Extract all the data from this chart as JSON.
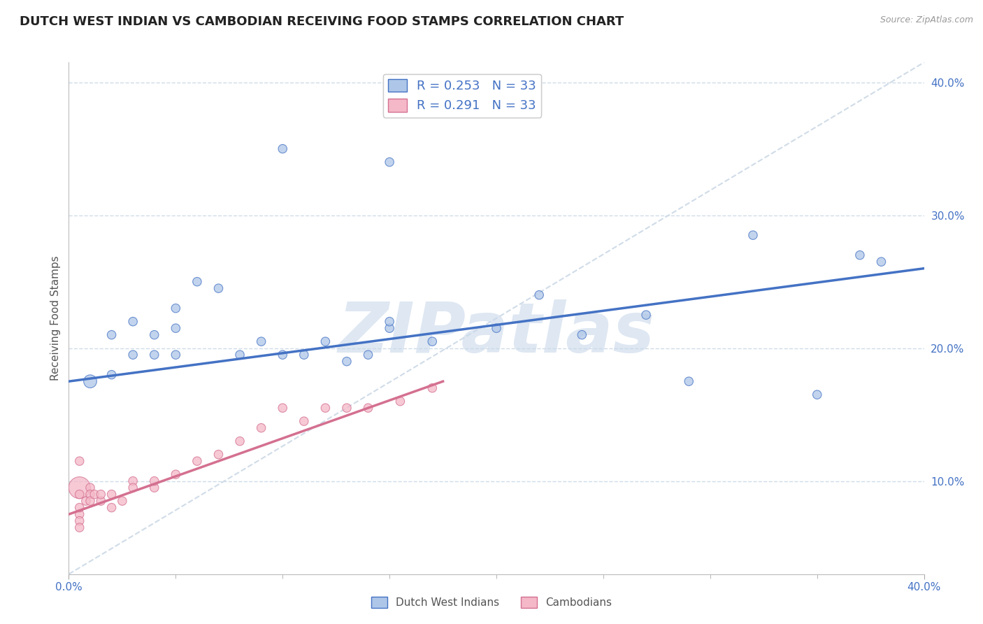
{
  "title": "DUTCH WEST INDIAN VS CAMBODIAN RECEIVING FOOD STAMPS CORRELATION CHART",
  "source": "Source: ZipAtlas.com",
  "ylabel": "Receiving Food Stamps",
  "xlim": [
    0.0,
    0.4
  ],
  "ylim": [
    0.03,
    0.415
  ],
  "y_ticks_right": [
    0.1,
    0.2,
    0.3,
    0.4
  ],
  "y_tick_labels_right": [
    "10.0%",
    "20.0%",
    "30.0%",
    "40.0%"
  ],
  "blue_color": "#aec6e8",
  "blue_color_dark": "#4472c4",
  "pink_color": "#f4b8c8",
  "pink_color_dark": "#d47090",
  "watermark": "ZIPatlas",
  "watermark_color": "#c8d8ea",
  "blue_scatter_x": [
    0.01,
    0.02,
    0.02,
    0.03,
    0.03,
    0.04,
    0.04,
    0.05,
    0.05,
    0.05,
    0.06,
    0.07,
    0.08,
    0.09,
    0.1,
    0.11,
    0.12,
    0.13,
    0.14,
    0.15,
    0.15,
    0.17,
    0.2,
    0.22,
    0.24,
    0.27,
    0.29,
    0.32,
    0.35,
    0.37,
    0.38,
    0.1,
    0.15
  ],
  "blue_scatter_y": [
    0.175,
    0.18,
    0.21,
    0.195,
    0.22,
    0.195,
    0.21,
    0.195,
    0.215,
    0.23,
    0.25,
    0.245,
    0.195,
    0.205,
    0.195,
    0.195,
    0.205,
    0.19,
    0.195,
    0.215,
    0.22,
    0.205,
    0.215,
    0.24,
    0.21,
    0.225,
    0.175,
    0.285,
    0.165,
    0.27,
    0.265,
    0.35,
    0.34
  ],
  "blue_scatter_sizes": [
    180,
    80,
    80,
    80,
    80,
    80,
    80,
    80,
    80,
    80,
    80,
    80,
    80,
    80,
    80,
    80,
    80,
    80,
    80,
    80,
    80,
    80,
    80,
    80,
    80,
    80,
    80,
    80,
    80,
    80,
    80,
    80,
    80
  ],
  "pink_scatter_x": [
    0.005,
    0.005,
    0.008,
    0.01,
    0.01,
    0.01,
    0.012,
    0.015,
    0.015,
    0.02,
    0.02,
    0.025,
    0.03,
    0.03,
    0.04,
    0.04,
    0.05,
    0.06,
    0.07,
    0.08,
    0.09,
    0.1,
    0.11,
    0.12,
    0.13,
    0.14,
    0.155,
    0.17,
    0.005,
    0.005,
    0.005,
    0.005,
    0.005
  ],
  "pink_scatter_y": [
    0.095,
    0.09,
    0.085,
    0.095,
    0.09,
    0.085,
    0.09,
    0.085,
    0.09,
    0.08,
    0.09,
    0.085,
    0.1,
    0.095,
    0.095,
    0.1,
    0.105,
    0.115,
    0.12,
    0.13,
    0.14,
    0.155,
    0.145,
    0.155,
    0.155,
    0.155,
    0.16,
    0.17,
    0.075,
    0.07,
    0.065,
    0.08,
    0.115
  ],
  "pink_scatter_sizes": [
    500,
    80,
    80,
    80,
    80,
    80,
    80,
    80,
    80,
    80,
    80,
    80,
    80,
    80,
    80,
    80,
    80,
    80,
    80,
    80,
    80,
    80,
    80,
    80,
    80,
    80,
    80,
    80,
    80,
    80,
    80,
    80,
    80
  ],
  "blue_line_x": [
    0.0,
    0.4
  ],
  "blue_line_y": [
    0.175,
    0.26
  ],
  "pink_line_x": [
    0.0,
    0.175
  ],
  "pink_line_y": [
    0.075,
    0.175
  ],
  "diag_line_x": [
    0.0,
    0.4
  ],
  "diag_line_y": [
    0.03,
    0.415
  ],
  "title_fontsize": 13,
  "tick_label_color": "#4472c4",
  "grid_color": "#d0dce8",
  "background_color": "#ffffff"
}
